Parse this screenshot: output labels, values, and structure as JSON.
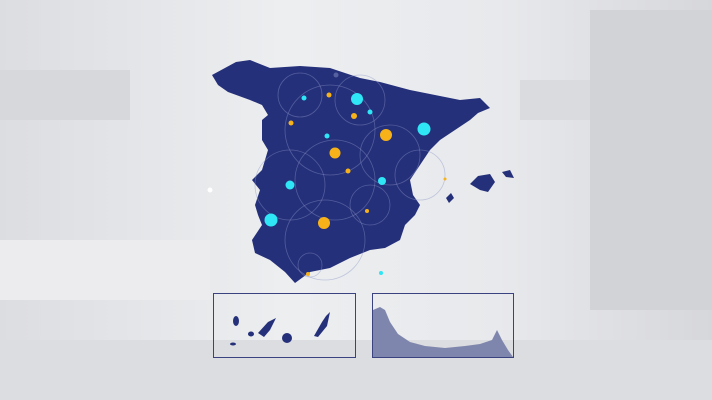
{
  "map": {
    "land_color": "#25307a",
    "background_color": "#e4e5e8",
    "marker_colors": {
      "cyan": "#2ee6f5",
      "yellow": "#f7b21a"
    },
    "insets": [
      {
        "name": "canary-islands"
      },
      {
        "name": "ceuta-melilla-coast"
      }
    ]
  }
}
